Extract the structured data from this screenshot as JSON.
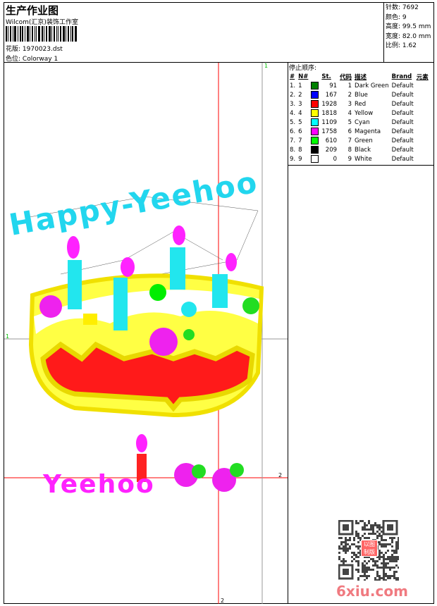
{
  "header": {
    "title": "生产作业图",
    "company": "Wilcom(汇京)装饰工作室",
    "design_label": "花版:",
    "design_file": "1970023.dst",
    "colorway_label": "色位:",
    "colorway": "Colorway 1"
  },
  "info": [
    {
      "label": "针数:",
      "value": "7692"
    },
    {
      "label": "颜色:",
      "value": "9"
    },
    {
      "label": "高度:",
      "value": "99.5 mm"
    },
    {
      "label": "宽度:",
      "value": "82.0 mm"
    },
    {
      "label": "比例:",
      "value": "1.62"
    }
  ],
  "stop_sequence": {
    "title": "停止顺序:",
    "headers": [
      "#",
      "N#",
      "",
      "St.",
      "代码",
      "描述",
      "Brand",
      "元素"
    ],
    "rows": [
      {
        "idx": "1.",
        "n": "1",
        "color": "#008000",
        "st": "91",
        "code": "1",
        "desc": "Dark Green",
        "brand": "Default"
      },
      {
        "idx": "2.",
        "n": "2",
        "color": "#0000ff",
        "st": "167",
        "code": "2",
        "desc": "Blue",
        "brand": "Default"
      },
      {
        "idx": "3.",
        "n": "3",
        "color": "#ff0000",
        "st": "1928",
        "code": "3",
        "desc": "Red",
        "brand": "Default"
      },
      {
        "idx": "4.",
        "n": "4",
        "color": "#ffff00",
        "st": "1818",
        "code": "4",
        "desc": "Yellow",
        "brand": "Default"
      },
      {
        "idx": "5.",
        "n": "5",
        "color": "#00ffff",
        "st": "1109",
        "code": "5",
        "desc": "Cyan",
        "brand": "Default"
      },
      {
        "idx": "6.",
        "n": "6",
        "color": "#ff00ff",
        "st": "1758",
        "code": "6",
        "desc": "Magenta",
        "brand": "Default"
      },
      {
        "idx": "7.",
        "n": "7",
        "color": "#00ff00",
        "st": "610",
        "code": "7",
        "desc": "Green",
        "brand": "Default"
      },
      {
        "idx": "8.",
        "n": "8",
        "color": "#000000",
        "st": "209",
        "code": "8",
        "desc": "Black",
        "brand": "Default"
      },
      {
        "idx": "9.",
        "n": "9",
        "color": "#ffffff",
        "st": "0",
        "code": "9",
        "desc": "White",
        "brand": "Default"
      }
    ]
  },
  "design": {
    "top_lettering": "Happy-Yeehoo",
    "bottom_lettering": "Yeehoo",
    "markers": {
      "vertical_1": "1",
      "horizontal_1": "1",
      "vertical_2": "2",
      "horizontal_2": "2"
    }
  },
  "watermark": {
    "site": "6xiu.com",
    "stamp": "以图制版"
  }
}
